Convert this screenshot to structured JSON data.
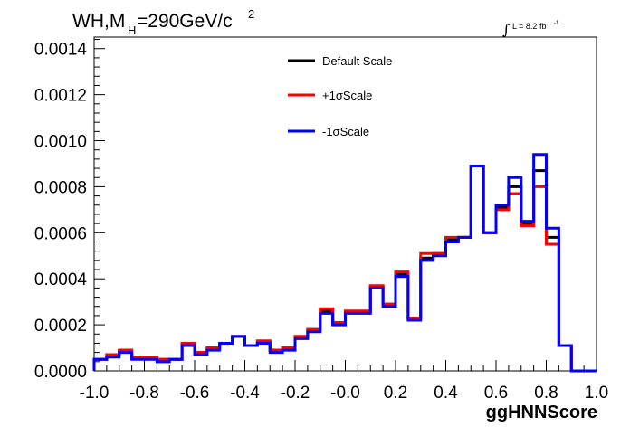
{
  "chart_data": {
    "type": "line",
    "title_main": "WH,M",
    "title_sub": "H",
    "title_rest": "=290GeV/c",
    "title_sup": "2",
    "lumi_integral": "∫",
    "lumi_text": "L = 8.2 fb",
    "lumi_sup": "-1",
    "xlabel": "ggHNNScore",
    "xlim": [
      -1.0,
      1.0
    ],
    "ylim": [
      0.0,
      0.00145
    ],
    "xticks": [
      -1.0,
      -0.8,
      -0.6,
      -0.4,
      -0.2,
      0.0,
      0.2,
      0.4,
      0.6,
      0.8,
      1.0
    ],
    "xtick_labels": [
      "-1.0",
      "-0.8",
      "-0.6",
      "-0.4",
      "-0.2",
      "-0.0",
      "0.2",
      "0.4",
      "0.6",
      "0.8",
      "1.0"
    ],
    "yticks": [
      0.0,
      0.0002,
      0.0004,
      0.0006,
      0.0008,
      0.001,
      0.0012,
      0.0014
    ],
    "ytick_labels": [
      "0.0000",
      "0.0002",
      "0.0004",
      "0.0006",
      "0.0008",
      "0.0010",
      "0.0012",
      "0.0014"
    ],
    "bin_edges": [
      -1.0,
      -0.95,
      -0.9,
      -0.85,
      -0.8,
      -0.75,
      -0.7,
      -0.65,
      -0.6,
      -0.55,
      -0.5,
      -0.45,
      -0.4,
      -0.35,
      -0.3,
      -0.25,
      -0.2,
      -0.15,
      -0.1,
      -0.05,
      0.0,
      0.05,
      0.1,
      0.15,
      0.2,
      0.25,
      0.3,
      0.35,
      0.4,
      0.45,
      0.5,
      0.55,
      0.6,
      0.65,
      0.7,
      0.75,
      0.8,
      0.85,
      0.9,
      0.95,
      1.0
    ],
    "legend_position": "top-center",
    "series": [
      {
        "name": "Default Scale",
        "color": "#000000",
        "values": [
          5e-05,
          7e-05,
          9e-05,
          6e-05,
          6e-05,
          5e-05,
          5e-05,
          0.00012,
          8e-05,
          0.0001,
          0.00012,
          0.00015,
          0.00011,
          0.00013,
          9e-05,
          0.0001,
          0.00015,
          0.00018,
          0.00026,
          0.00021,
          0.00026,
          0.00026,
          0.00037,
          0.00029,
          0.00042,
          0.00023,
          0.00049,
          0.00051,
          0.00057,
          0.00058,
          0.00089,
          0.0006,
          0.00071,
          0.0008,
          0.00064,
          0.00087,
          0.00058,
          0.00011,
          0.0,
          0.0
        ]
      },
      {
        "name": "+1σScale",
        "color": "#ff0000",
        "values": [
          5e-05,
          7e-05,
          9e-05,
          6e-05,
          6e-05,
          5e-05,
          5e-05,
          0.00012,
          8e-05,
          0.0001,
          0.00012,
          0.00015,
          0.00011,
          0.00013,
          9e-05,
          0.0001,
          0.00015,
          0.00018,
          0.00027,
          0.00021,
          0.00026,
          0.00026,
          0.00037,
          0.00029,
          0.00043,
          0.00023,
          0.00051,
          0.00051,
          0.00058,
          0.00058,
          0.00089,
          0.0006,
          0.0007,
          0.00077,
          0.00063,
          0.0008,
          0.00055,
          0.00011,
          0.0,
          0.0
        ]
      },
      {
        "name": "-1σScale",
        "color": "#0000ff",
        "values": [
          5e-05,
          6e-05,
          8e-05,
          5e-05,
          5e-05,
          4e-05,
          5e-05,
          0.00011,
          7e-05,
          9e-05,
          0.00012,
          0.00015,
          0.00011,
          0.00012,
          8e-05,
          9e-05,
          0.00014,
          0.00017,
          0.00025,
          0.0002,
          0.00025,
          0.00025,
          0.00036,
          0.00028,
          0.00041,
          0.00022,
          0.00048,
          0.0005,
          0.00056,
          0.00058,
          0.00089,
          0.0006,
          0.00072,
          0.00084,
          0.00065,
          0.00094,
          0.00062,
          0.00011,
          0.0,
          0.0
        ]
      }
    ]
  }
}
